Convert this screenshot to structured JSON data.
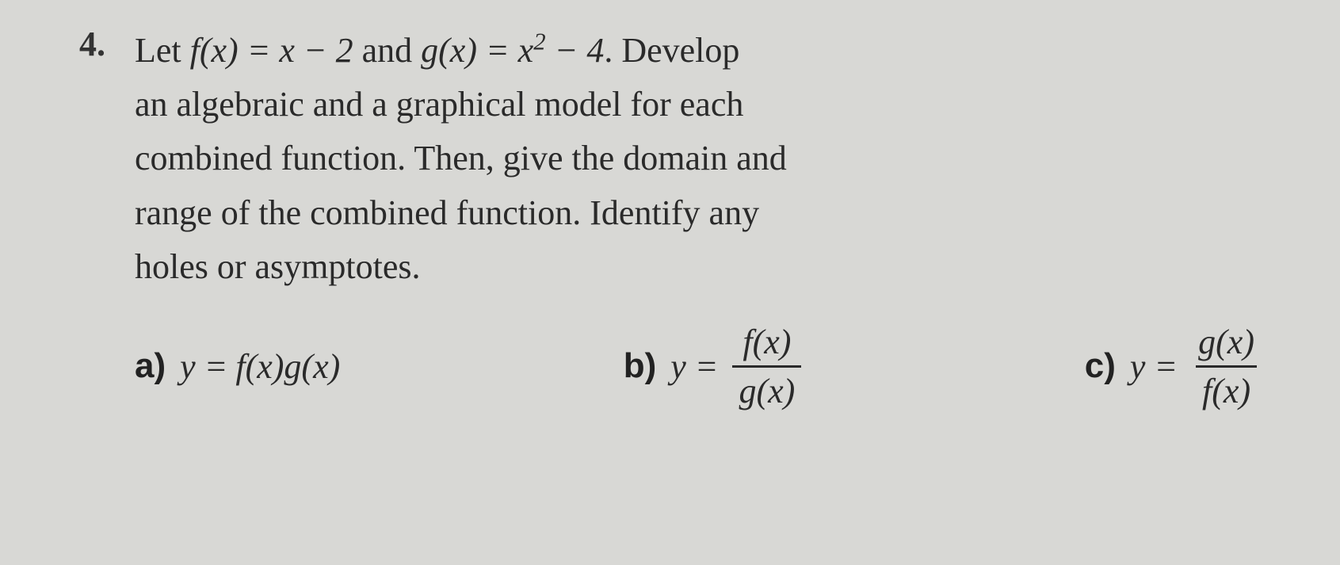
{
  "problem": {
    "number": "4.",
    "text_line1_part1": "Let ",
    "fx_expr": "f(x) = x − 2",
    "text_and": " and ",
    "gx_expr_part1": "g(x) = x",
    "gx_exponent": "2",
    "gx_expr_part2": " − 4",
    "text_line1_part2": ". Develop",
    "text_line2": "an algebraic and a graphical model for each",
    "text_line3": "combined function. Then, give the domain and",
    "text_line4": "range of the combined function. Identify any",
    "text_line5": "holes or asymptotes."
  },
  "parts": {
    "a": {
      "label": "a)",
      "y_equals": "y = ",
      "expression": "f(x)g(x)"
    },
    "b": {
      "label": "b)",
      "y_equals": "y = ",
      "numerator": "f(x)",
      "denominator": "g(x)"
    },
    "c": {
      "label": "c)",
      "y_equals": "y = ",
      "numerator": "g(x)",
      "denominator": "f(x)"
    }
  },
  "styling": {
    "background_color": "#d8d8d5",
    "text_color": "#2a2a2a",
    "font_family": "Georgia, Times New Roman, serif",
    "base_fontsize": 44,
    "line_height": 1.55,
    "fraction_border_width": 3,
    "bold_label_font": "Arial, sans-serif"
  }
}
